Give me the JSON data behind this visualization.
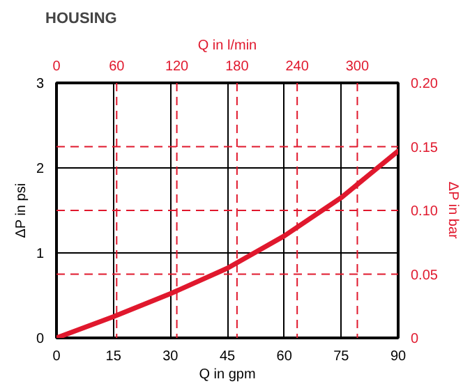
{
  "chart_data": {
    "type": "line",
    "title": "HOUSING",
    "xlabel": "Q in gpm",
    "ylabel": "ΔP in psi",
    "x2label": "Q in l/min",
    "y2label": "ΔP in bar",
    "x": [
      0,
      15,
      30,
      45,
      60,
      75,
      90
    ],
    "series": [
      {
        "color": "#e0182d",
        "values": [
          0,
          0.25,
          0.52,
          0.82,
          1.2,
          1.65,
          2.2
        ]
      }
    ],
    "xlim": [
      0,
      90
    ],
    "xticks": [
      0,
      15,
      30,
      45,
      60,
      75,
      90
    ],
    "ylim": [
      0,
      3
    ],
    "yticks": [
      0,
      1,
      2,
      3
    ],
    "x2lim": [
      0,
      340.7
    ],
    "x2ticks": [
      0,
      60,
      120,
      180,
      240,
      300
    ],
    "y2lim": [
      0,
      0.2
    ],
    "y2ticks": [
      0,
      0.05,
      {
        "value": 0.1,
        "label": "0.10"
      },
      0.15,
      {
        "value": 0.2,
        "label": "0.20"
      }
    ],
    "grid": true,
    "marker": "none",
    "line_style": "solid"
  }
}
